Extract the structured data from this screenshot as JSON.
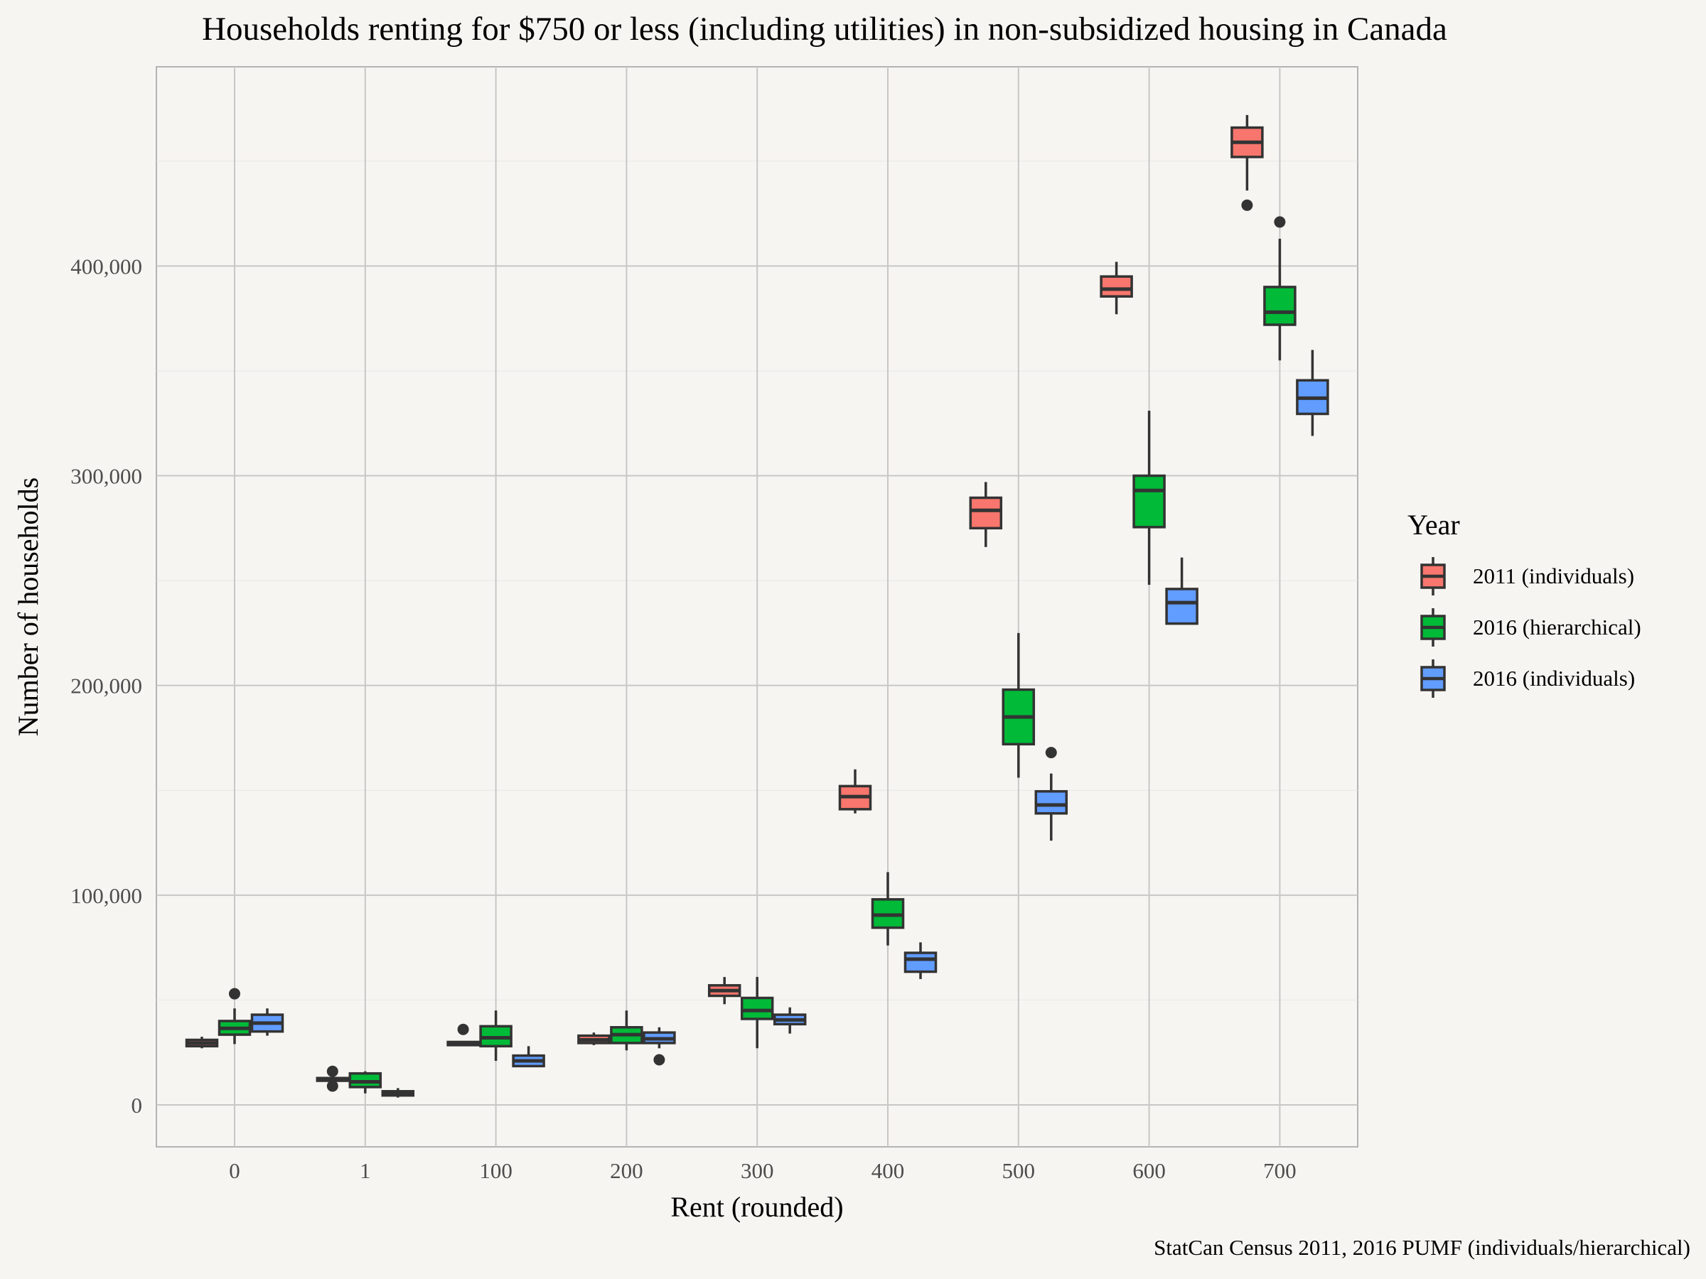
{
  "chart_data": {
    "type": "boxplot",
    "title": "Households renting for $750 or less (including utilities) in non-subsidized housing in Canada",
    "xlabel": "Rent (rounded)",
    "ylabel": "Number of households",
    "caption": "StatCan Census 2011, 2016 PUMF (individuals/hierarchical)",
    "categories": [
      "0",
      "1",
      "100",
      "200",
      "300",
      "400",
      "500",
      "600",
      "700"
    ],
    "ylim": [
      -20000,
      495000
    ],
    "y_ticks": [
      0,
      100000,
      200000,
      300000,
      400000
    ],
    "y_tick_labels": [
      "0",
      "100,000",
      "200,000",
      "300,000",
      "400,000"
    ],
    "legend": {
      "title": "Year",
      "position": "right"
    },
    "grid": true,
    "series": [
      {
        "name": "2011 (individuals)",
        "color": "#f8766d",
        "boxes": [
          {
            "min": 27000,
            "q1": 28000,
            "median": 29500,
            "q3": 31000,
            "max": 32500,
            "outliers": []
          },
          {
            "min": 11000,
            "q1": 11500,
            "median": 12000,
            "q3": 12800,
            "max": 13500,
            "outliers": [
              9000,
              16000
            ]
          },
          {
            "min": 28000,
            "q1": 28500,
            "median": 29000,
            "q3": 30000,
            "max": 30500,
            "outliers": [
              36000
            ]
          },
          {
            "min": 28500,
            "q1": 29500,
            "median": 31000,
            "q3": 33000,
            "max": 34500,
            "outliers": []
          },
          {
            "min": 48000,
            "q1": 52000,
            "median": 54500,
            "q3": 57000,
            "max": 61000,
            "outliers": []
          },
          {
            "min": 139000,
            "q1": 141000,
            "median": 147000,
            "q3": 152000,
            "max": 160000,
            "outliers": []
          },
          {
            "min": 266000,
            "q1": 275000,
            "median": 283500,
            "q3": 289500,
            "max": 297000,
            "outliers": []
          },
          {
            "min": 377000,
            "q1": 385500,
            "median": 389000,
            "q3": 395000,
            "max": 402000,
            "outliers": []
          },
          {
            "min": 436000,
            "q1": 452000,
            "median": 459000,
            "q3": 466000,
            "max": 472000,
            "outliers": [
              429000
            ]
          }
        ]
      },
      {
        "name": "2016 (hierarchical)",
        "color": "#00ba38",
        "boxes": [
          {
            "min": 29000,
            "q1": 33500,
            "median": 36500,
            "q3": 40000,
            "max": 46000,
            "outliers": [
              53000
            ]
          },
          {
            "min": 5500,
            "q1": 8500,
            "median": 11000,
            "q3": 15000,
            "max": 16000,
            "outliers": []
          },
          {
            "min": 21000,
            "q1": 28000,
            "median": 32000,
            "q3": 37500,
            "max": 45000,
            "outliers": []
          },
          {
            "min": 26000,
            "q1": 29500,
            "median": 33500,
            "q3": 37000,
            "max": 45000,
            "outliers": []
          },
          {
            "min": 27000,
            "q1": 41000,
            "median": 45000,
            "q3": 51000,
            "max": 61000,
            "outliers": []
          },
          {
            "min": 76000,
            "q1": 84500,
            "median": 90500,
            "q3": 98000,
            "max": 111000,
            "outliers": []
          },
          {
            "min": 156000,
            "q1": 172000,
            "median": 185000,
            "q3": 198000,
            "max": 225000,
            "outliers": []
          },
          {
            "min": 248000,
            "q1": 275500,
            "median": 293000,
            "q3": 300000,
            "max": 331000,
            "outliers": []
          },
          {
            "min": 355000,
            "q1": 372000,
            "median": 378000,
            "q3": 390000,
            "max": 413000,
            "outliers": [
              421000
            ]
          }
        ]
      },
      {
        "name": "2016 (individuals)",
        "color": "#619cff",
        "boxes": [
          {
            "min": 33000,
            "q1": 35000,
            "median": 39000,
            "q3": 43000,
            "max": 46000,
            "outliers": []
          },
          {
            "min": 3500,
            "q1": 4500,
            "median": 5500,
            "q3": 6500,
            "max": 8000,
            "outliers": []
          },
          {
            "min": 18000,
            "q1": 18500,
            "median": 21000,
            "q3": 23500,
            "max": 28000,
            "outliers": []
          },
          {
            "min": 27000,
            "q1": 29500,
            "median": 31500,
            "q3": 34500,
            "max": 37000,
            "outliers": [
              21500
            ]
          },
          {
            "min": 34000,
            "q1": 38500,
            "median": 40500,
            "q3": 43000,
            "max": 46500,
            "outliers": []
          },
          {
            "min": 60000,
            "q1": 63500,
            "median": 69500,
            "q3": 72500,
            "max": 77500,
            "outliers": []
          },
          {
            "min": 126000,
            "q1": 139000,
            "median": 143000,
            "q3": 149500,
            "max": 158000,
            "outliers": [
              168000
            ]
          },
          {
            "min": 229000,
            "q1": 229500,
            "median": 239500,
            "q3": 246000,
            "max": 261000,
            "outliers": []
          },
          {
            "min": 319000,
            "q1": 329500,
            "median": 337000,
            "q3": 345500,
            "max": 360000,
            "outliers": []
          }
        ]
      }
    ]
  }
}
